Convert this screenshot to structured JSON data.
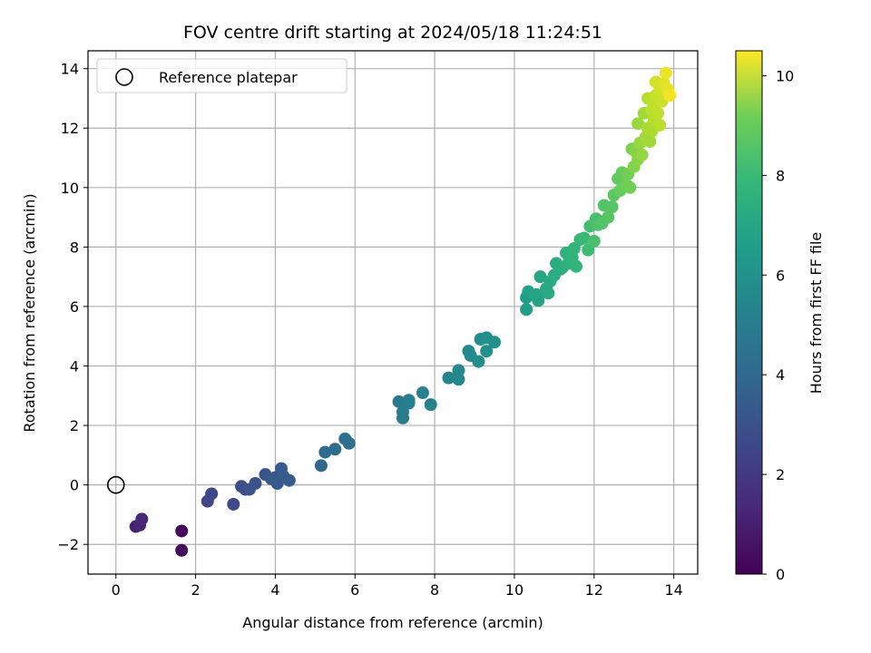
{
  "chart_data": {
    "type": "scatter",
    "title": "FOV centre drift starting at 2024/05/18 11:24:51",
    "xlabel": "Angular distance from reference (arcmin)",
    "ylabel": "Rotation from reference (arcmin)",
    "xlim": [
      -0.7,
      14.6
    ],
    "ylim": [
      -3.0,
      14.6
    ],
    "xticks": [
      0,
      2,
      4,
      6,
      8,
      10,
      12,
      14
    ],
    "yticks": [
      -2,
      0,
      2,
      4,
      6,
      8,
      10,
      12,
      14
    ],
    "grid": true,
    "legend": {
      "placement": "top-left",
      "entries": [
        "Reference platepar"
      ]
    },
    "reference_point": {
      "x": 0,
      "y": 0,
      "name": "Reference platepar"
    },
    "colorbar": {
      "label": "Hours from first FF file",
      "range": [
        0,
        10.5
      ],
      "ticks": [
        0,
        2,
        4,
        6,
        8,
        10
      ],
      "colormap": "viridis"
    },
    "points": [
      {
        "x": 1.65,
        "y": -1.55,
        "t": 0.2
      },
      {
        "x": 1.65,
        "y": -2.2,
        "t": 0.3
      },
      {
        "x": 0.5,
        "y": -1.4,
        "t": 1.0
      },
      {
        "x": 0.6,
        "y": -1.35,
        "t": 1.1
      },
      {
        "x": 0.65,
        "y": -1.15,
        "t": 1.2
      },
      {
        "x": 2.3,
        "y": -0.55,
        "t": 2.2
      },
      {
        "x": 2.4,
        "y": -0.3,
        "t": 2.3
      },
      {
        "x": 2.95,
        "y": -0.65,
        "t": 2.4
      },
      {
        "x": 3.15,
        "y": -0.05,
        "t": 2.5
      },
      {
        "x": 3.25,
        "y": -0.15,
        "t": 2.6
      },
      {
        "x": 3.35,
        "y": -0.15,
        "t": 2.7
      },
      {
        "x": 3.5,
        "y": 0.05,
        "t": 2.7
      },
      {
        "x": 3.75,
        "y": 0.35,
        "t": 2.8
      },
      {
        "x": 3.9,
        "y": 0.2,
        "t": 2.9
      },
      {
        "x": 4.0,
        "y": 0.25,
        "t": 2.9
      },
      {
        "x": 4.05,
        "y": 0.05,
        "t": 3.0
      },
      {
        "x": 4.15,
        "y": 0.55,
        "t": 3.0
      },
      {
        "x": 4.2,
        "y": 0.3,
        "t": 3.1
      },
      {
        "x": 4.35,
        "y": 0.15,
        "t": 3.1
      },
      {
        "x": 5.15,
        "y": 0.65,
        "t": 3.5
      },
      {
        "x": 5.25,
        "y": 1.1,
        "t": 3.6
      },
      {
        "x": 5.5,
        "y": 1.2,
        "t": 3.7
      },
      {
        "x": 5.75,
        "y": 1.55,
        "t": 3.8
      },
      {
        "x": 5.85,
        "y": 1.4,
        "t": 3.8
      },
      {
        "x": 7.1,
        "y": 2.8,
        "t": 4.3
      },
      {
        "x": 7.2,
        "y": 2.45,
        "t": 4.4
      },
      {
        "x": 7.2,
        "y": 2.25,
        "t": 4.4
      },
      {
        "x": 7.35,
        "y": 2.75,
        "t": 4.5
      },
      {
        "x": 7.35,
        "y": 2.85,
        "t": 4.5
      },
      {
        "x": 7.7,
        "y": 3.1,
        "t": 4.6
      },
      {
        "x": 7.9,
        "y": 2.7,
        "t": 4.7
      },
      {
        "x": 8.35,
        "y": 3.6,
        "t": 4.8
      },
      {
        "x": 8.6,
        "y": 3.55,
        "t": 4.9
      },
      {
        "x": 8.6,
        "y": 3.85,
        "t": 4.9
      },
      {
        "x": 8.85,
        "y": 4.5,
        "t": 5.0
      },
      {
        "x": 8.9,
        "y": 4.35,
        "t": 5.0
      },
      {
        "x": 9.1,
        "y": 4.15,
        "t": 5.1
      },
      {
        "x": 9.15,
        "y": 4.9,
        "t": 5.1
      },
      {
        "x": 9.3,
        "y": 4.95,
        "t": 5.2
      },
      {
        "x": 9.3,
        "y": 4.5,
        "t": 5.2
      },
      {
        "x": 9.5,
        "y": 4.8,
        "t": 5.3
      },
      {
        "x": 10.3,
        "y": 5.9,
        "t": 5.9
      },
      {
        "x": 10.3,
        "y": 6.3,
        "t": 5.9
      },
      {
        "x": 10.35,
        "y": 6.5,
        "t": 6.0
      },
      {
        "x": 10.55,
        "y": 6.4,
        "t": 6.1
      },
      {
        "x": 10.6,
        "y": 6.2,
        "t": 6.1
      },
      {
        "x": 10.65,
        "y": 7.0,
        "t": 6.2
      },
      {
        "x": 10.8,
        "y": 6.6,
        "t": 6.3
      },
      {
        "x": 10.85,
        "y": 6.45,
        "t": 6.3
      },
      {
        "x": 10.9,
        "y": 6.85,
        "t": 6.4
      },
      {
        "x": 11.0,
        "y": 7.05,
        "t": 6.5
      },
      {
        "x": 11.05,
        "y": 7.45,
        "t": 6.5
      },
      {
        "x": 11.15,
        "y": 7.25,
        "t": 6.6
      },
      {
        "x": 11.2,
        "y": 7.3,
        "t": 6.6
      },
      {
        "x": 11.3,
        "y": 7.8,
        "t": 6.7
      },
      {
        "x": 11.35,
        "y": 7.45,
        "t": 6.7
      },
      {
        "x": 11.45,
        "y": 7.65,
        "t": 6.8
      },
      {
        "x": 11.5,
        "y": 7.95,
        "t": 6.9
      },
      {
        "x": 11.55,
        "y": 7.35,
        "t": 6.9
      },
      {
        "x": 11.65,
        "y": 8.25,
        "t": 7.0
      },
      {
        "x": 11.75,
        "y": 8.3,
        "t": 7.1
      },
      {
        "x": 11.85,
        "y": 7.9,
        "t": 7.2
      },
      {
        "x": 11.9,
        "y": 8.7,
        "t": 7.3
      },
      {
        "x": 12.0,
        "y": 8.2,
        "t": 7.4
      },
      {
        "x": 12.05,
        "y": 8.95,
        "t": 7.4
      },
      {
        "x": 12.1,
        "y": 8.75,
        "t": 7.5
      },
      {
        "x": 12.2,
        "y": 8.8,
        "t": 7.6
      },
      {
        "x": 12.25,
        "y": 9.4,
        "t": 7.6
      },
      {
        "x": 12.35,
        "y": 9.0,
        "t": 7.7
      },
      {
        "x": 12.45,
        "y": 9.35,
        "t": 7.7
      },
      {
        "x": 12.5,
        "y": 9.75,
        "t": 7.8
      },
      {
        "x": 12.6,
        "y": 10.3,
        "t": 7.9
      },
      {
        "x": 12.65,
        "y": 9.9,
        "t": 8.0
      },
      {
        "x": 12.7,
        "y": 10.5,
        "t": 8.0
      },
      {
        "x": 12.8,
        "y": 10.1,
        "t": 8.1
      },
      {
        "x": 12.85,
        "y": 10.45,
        "t": 8.2
      },
      {
        "x": 12.9,
        "y": 10.0,
        "t": 8.2
      },
      {
        "x": 12.95,
        "y": 11.3,
        "t": 8.4
      },
      {
        "x": 13.0,
        "y": 10.7,
        "t": 8.5
      },
      {
        "x": 13.05,
        "y": 11.2,
        "t": 8.6
      },
      {
        "x": 13.1,
        "y": 10.95,
        "t": 8.6
      },
      {
        "x": 13.1,
        "y": 12.15,
        "t": 8.9
      },
      {
        "x": 13.15,
        "y": 11.5,
        "t": 8.8
      },
      {
        "x": 13.2,
        "y": 11.1,
        "t": 8.8
      },
      {
        "x": 13.25,
        "y": 12.5,
        "t": 9.0
      },
      {
        "x": 13.3,
        "y": 11.7,
        "t": 9.0
      },
      {
        "x": 13.35,
        "y": 13.0,
        "t": 9.3
      },
      {
        "x": 13.35,
        "y": 12.0,
        "t": 9.1
      },
      {
        "x": 13.4,
        "y": 11.55,
        "t": 9.0
      },
      {
        "x": 13.45,
        "y": 12.6,
        "t": 9.4
      },
      {
        "x": 13.45,
        "y": 11.9,
        "t": 9.2
      },
      {
        "x": 13.5,
        "y": 12.8,
        "t": 9.5
      },
      {
        "x": 13.5,
        "y": 12.25,
        "t": 9.3
      },
      {
        "x": 13.55,
        "y": 13.55,
        "t": 9.8
      },
      {
        "x": 13.55,
        "y": 13.1,
        "t": 9.6
      },
      {
        "x": 13.6,
        "y": 12.5,
        "t": 9.5
      },
      {
        "x": 13.65,
        "y": 13.3,
        "t": 9.8
      },
      {
        "x": 13.65,
        "y": 12.1,
        "t": 9.4
      },
      {
        "x": 13.7,
        "y": 12.9,
        "t": 9.7
      },
      {
        "x": 13.75,
        "y": 13.5,
        "t": 10.0
      },
      {
        "x": 13.8,
        "y": 13.85,
        "t": 10.2
      },
      {
        "x": 13.85,
        "y": 13.3,
        "t": 10.1
      },
      {
        "x": 13.9,
        "y": 13.1,
        "t": 10.3
      }
    ]
  }
}
